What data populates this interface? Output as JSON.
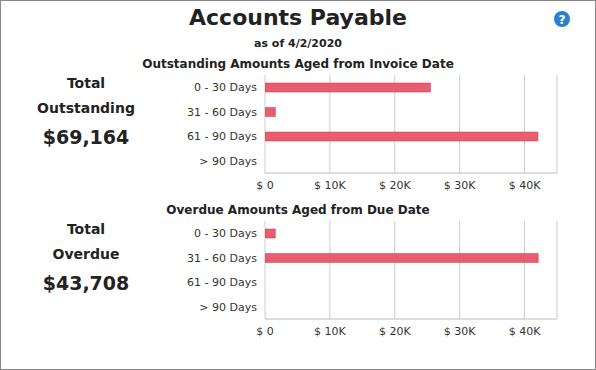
{
  "title": "Accounts Payable",
  "subtitle": "as of 4/2/2020",
  "help_icon": "?",
  "chart_data": [
    {
      "type": "bar",
      "orientation": "horizontal",
      "title": "Outstanding Amounts Aged from Invoice Date",
      "total_label": [
        "Total",
        "Outstanding"
      ],
      "total": "$69,164",
      "categories": [
        "0 - 30 Days",
        "31 - 60 Days",
        "61 - 90 Days",
        "> 90 Days"
      ],
      "values": [
        25500,
        1600,
        42064,
        0
      ],
      "color": "#e95d6f",
      "xlim": [
        0,
        45000
      ],
      "xticks": [
        {
          "value": 0,
          "label": "$ 0"
        },
        {
          "value": 10000,
          "label": "$ 10K"
        },
        {
          "value": 20000,
          "label": "$ 20K"
        },
        {
          "value": 30000,
          "label": "$ 30K"
        },
        {
          "value": 40000,
          "label": "$ 40K"
        }
      ],
      "grid": true
    },
    {
      "type": "bar",
      "orientation": "horizontal",
      "title": "Overdue Amounts Aged from Due Date",
      "total_label": [
        "Total",
        "Overdue"
      ],
      "total": "$43,708",
      "categories": [
        "0 - 30 Days",
        "31 - 60 Days",
        "61 - 90 Days",
        "> 90 Days"
      ],
      "values": [
        1600,
        42108,
        0,
        0
      ],
      "color": "#e95d6f",
      "xlim": [
        0,
        45000
      ],
      "xticks": [
        {
          "value": 0,
          "label": "$ 0"
        },
        {
          "value": 10000,
          "label": "$ 10K"
        },
        {
          "value": 20000,
          "label": "$ 20K"
        },
        {
          "value": 30000,
          "label": "$ 30K"
        },
        {
          "value": 40000,
          "label": "$ 40K"
        }
      ],
      "grid": true
    }
  ]
}
